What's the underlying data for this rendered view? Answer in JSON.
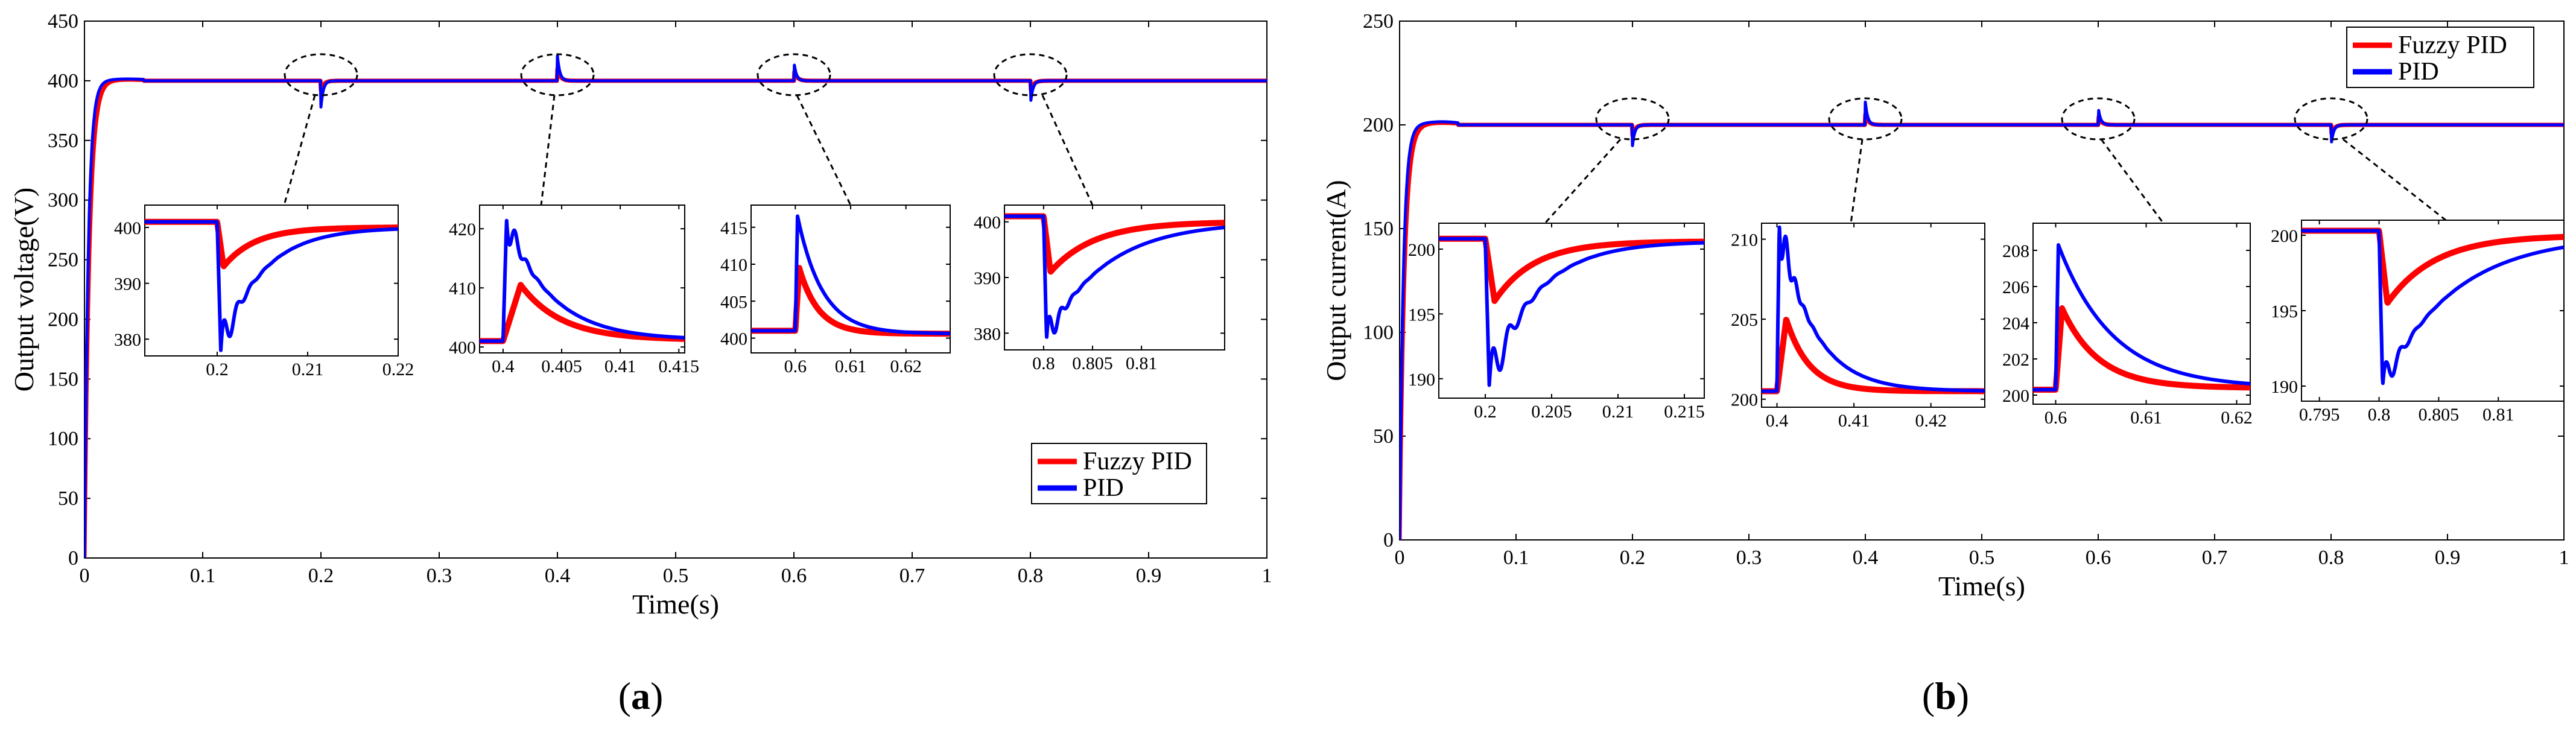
{
  "colors": {
    "fuzzy_pid": "#ff0000",
    "pid": "#0000ff",
    "axis": "#000000"
  },
  "chart_data": [
    {
      "type": "line",
      "panel_label": "a",
      "title": "",
      "xlabel": "Time(s)",
      "ylabel": "Output voltage(V)",
      "xlim": [
        0,
        1
      ],
      "ylim": [
        0,
        450
      ],
      "xticks": [
        0,
        0.1,
        0.2,
        0.3,
        0.4,
        0.5,
        0.6,
        0.7,
        0.8,
        0.9,
        1
      ],
      "xtick_labels": [
        "0",
        "0.1",
        "0.2",
        "0.3",
        "0.4",
        "0.5",
        "0.6",
        "0.7",
        "0.8",
        "0.9",
        "1"
      ],
      "yticks": [
        0,
        50,
        100,
        150,
        200,
        250,
        300,
        350,
        400,
        450
      ],
      "ytick_labels": [
        "0",
        "50",
        "100",
        "150",
        "200",
        "250",
        "300",
        "350",
        "400",
        "450"
      ],
      "legend": [
        "Fuzzy PID",
        "PID"
      ],
      "legend_position": "bottom-right",
      "setpoint": 400,
      "startup_time_constant": 0.004,
      "disturbances": [
        {
          "t": 0.2,
          "fuzzy_peak": 392,
          "pid_peak": 378
        },
        {
          "t": 0.4,
          "fuzzy_peak": 410,
          "pid_peak": 421
        },
        {
          "t": 0.6,
          "fuzzy_peak": 409,
          "pid_peak": 416
        },
        {
          "t": 0.8,
          "fuzzy_peak": 391,
          "pid_peak": 380
        }
      ],
      "series": [
        {
          "name": "Fuzzy PID",
          "color": "#ff0000",
          "points": [
            [
              0,
              0
            ],
            [
              0.005,
              280
            ],
            [
              0.01,
              370
            ],
            [
              0.02,
              398
            ],
            [
              0.03,
              401
            ],
            [
              0.2,
              401
            ],
            [
              0.201,
              393
            ],
            [
              0.21,
              399
            ],
            [
              0.4,
              400
            ],
            [
              0.401,
              410
            ],
            [
              0.41,
              401
            ],
            [
              0.6,
              400
            ],
            [
              0.601,
              409
            ],
            [
              0.61,
              401
            ],
            [
              0.8,
              401
            ],
            [
              0.801,
              391
            ],
            [
              0.81,
              399
            ],
            [
              1,
              400
            ]
          ]
        },
        {
          "name": "PID",
          "color": "#0000ff",
          "points": [
            [
              0,
              0
            ],
            [
              0.005,
              300
            ],
            [
              0.01,
              385
            ],
            [
              0.02,
              400
            ],
            [
              0.03,
              402
            ],
            [
              0.2,
              401
            ],
            [
              0.2005,
              378
            ],
            [
              0.21,
              399
            ],
            [
              0.4,
              400
            ],
            [
              0.4005,
              421
            ],
            [
              0.41,
              402
            ],
            [
              0.6,
              400
            ],
            [
              0.6005,
              416
            ],
            [
              0.61,
              402
            ],
            [
              0.8,
              401
            ],
            [
              0.8005,
              380
            ],
            [
              0.81,
              398
            ],
            [
              1,
              400
            ]
          ]
        }
      ],
      "insets": [
        {
          "xlim": [
            0.192,
            0.22
          ],
          "ylim": [
            377,
            404
          ],
          "xticks": [
            0.2,
            0.21,
            0.22
          ],
          "xtick_labels": [
            "0.2",
            "0.21",
            "0.22"
          ],
          "yticks": [
            380,
            390,
            400
          ],
          "ytick_labels": [
            "380",
            "390",
            "400"
          ],
          "t0": 0.2,
          "pre": 401,
          "final": 400,
          "fuzzy_peak": 393,
          "pid_peak": 378,
          "fuzzy_tau": 0.0035,
          "pid_tau": 0.0045,
          "osc_amp": 5,
          "osc_period": 0.0015,
          "osc_decay": 0.0012,
          "pid_rise": 0.0004
        },
        {
          "xlim": [
            0.398,
            0.4155
          ],
          "ylim": [
            399,
            424
          ],
          "xticks": [
            0.4,
            0.405,
            0.41,
            0.415
          ],
          "xtick_labels": [
            "0.4",
            "0.405",
            "0.41",
            "0.415"
          ],
          "yticks": [
            400,
            410,
            420
          ],
          "ytick_labels": [
            "400",
            "410",
            "420"
          ],
          "t0": 0.4,
          "pre": 401,
          "final": 401.2,
          "fuzzy_peak": 410.5,
          "pid_peak": 421.5,
          "fuzzy_tau": 0.0035,
          "pid_tau": 0.0038,
          "osc_amp": 4,
          "osc_period": 0.001,
          "osc_decay": 0.0008,
          "pid_rise": 0.0003,
          "fuzzy_rise": 0.0015
        },
        {
          "xlim": [
            0.592,
            0.628
          ],
          "ylim": [
            398,
            418
          ],
          "xticks": [
            0.6,
            0.61,
            0.62
          ],
          "xtick_labels": [
            "0.6",
            "0.61",
            "0.62"
          ],
          "yticks": [
            400,
            405,
            410,
            415
          ],
          "ytick_labels": [
            "400",
            "405",
            "410",
            "415"
          ],
          "t0": 0.6,
          "pre": 401,
          "final": 400.6,
          "fuzzy_peak": 409.5,
          "pid_peak": 416.5,
          "fuzzy_tau": 0.0035,
          "pid_tau": 0.0045,
          "osc_amp": 0,
          "osc_period": 0.001,
          "osc_decay": 0.001,
          "pid_rise": 0.0004
        },
        {
          "xlim": [
            0.796,
            0.8185
          ],
          "ylim": [
            377,
            403
          ],
          "xticks": [
            0.8,
            0.805,
            0.81
          ],
          "xtick_labels": [
            "0.8",
            "0.805",
            "0.81"
          ],
          "yticks": [
            380,
            390,
            400
          ],
          "ytick_labels": [
            "380",
            "390",
            "400"
          ],
          "t0": 0.8,
          "pre": 401,
          "final": 400,
          "fuzzy_peak": 391,
          "pid_peak": 379,
          "fuzzy_tau": 0.0045,
          "pid_tau": 0.006,
          "osc_amp": 4,
          "osc_period": 0.0012,
          "osc_decay": 0.001,
          "pid_rise": 0.0003
        }
      ]
    },
    {
      "type": "line",
      "panel_label": "b",
      "title": "",
      "xlabel": "Time(s)",
      "ylabel": "Output current(A)",
      "xlim": [
        0,
        1
      ],
      "ylim": [
        0,
        250
      ],
      "xticks": [
        0,
        0.1,
        0.2,
        0.3,
        0.4,
        0.5,
        0.6,
        0.7,
        0.8,
        0.9,
        1
      ],
      "xtick_labels": [
        "0",
        "0.1",
        "0.2",
        "0.3",
        "0.4",
        "0.5",
        "0.6",
        "0.7",
        "0.8",
        "0.9",
        "1"
      ],
      "yticks": [
        0,
        50,
        100,
        150,
        200,
        250
      ],
      "ytick_labels": [
        "0",
        "50",
        "100",
        "150",
        "200",
        "250"
      ],
      "legend": [
        "Fuzzy PID",
        "PID"
      ],
      "legend_position": "top-right",
      "setpoint": 200,
      "startup_time_constant": 0.004,
      "disturbances": [
        {
          "t": 0.2,
          "fuzzy_peak": 195,
          "pid_peak": 190
        },
        {
          "t": 0.4,
          "fuzzy_peak": 205,
          "pid_peak": 211
        },
        {
          "t": 0.6,
          "fuzzy_peak": 204.5,
          "pid_peak": 208.5
        },
        {
          "t": 0.8,
          "fuzzy_peak": 195,
          "pid_peak": 190
        }
      ],
      "series": [
        {
          "name": "Fuzzy PID",
          "color": "#ff0000",
          "points": [
            [
              0,
              0
            ],
            [
              0.005,
              150
            ],
            [
              0.01,
              190
            ],
            [
              0.02,
              200
            ],
            [
              0.03,
              201
            ],
            [
              0.2,
              201
            ],
            [
              0.201,
              195
            ],
            [
              0.21,
              200
            ],
            [
              0.4,
              200
            ],
            [
              0.401,
              205
            ],
            [
              0.41,
              200.5
            ],
            [
              0.6,
              200
            ],
            [
              0.601,
              204.5
            ],
            [
              0.61,
              200.5
            ],
            [
              0.8,
              200
            ],
            [
              0.801,
              195
            ],
            [
              0.81,
              199
            ],
            [
              1,
              200
            ]
          ]
        },
        {
          "name": "PID",
          "color": "#0000ff",
          "points": [
            [
              0,
              0
            ],
            [
              0.003,
              130
            ],
            [
              0.008,
              190
            ],
            [
              0.02,
              201
            ],
            [
              0.03,
              201
            ],
            [
              0.2,
              201
            ],
            [
              0.2005,
              190
            ],
            [
              0.21,
              200
            ],
            [
              0.4,
              200
            ],
            [
              0.4005,
              211
            ],
            [
              0.41,
              201
            ],
            [
              0.6,
              200
            ],
            [
              0.6005,
              208.5
            ],
            [
              0.61,
              201
            ],
            [
              0.8,
              200
            ],
            [
              0.8005,
              190
            ],
            [
              0.81,
              199
            ],
            [
              1,
              200
            ]
          ]
        }
      ],
      "insets": [
        {
          "xlim": [
            0.1965,
            0.2165
          ],
          "ylim": [
            188.5,
            202
          ],
          "xticks": [
            0.2,
            0.205,
            0.21,
            0.215
          ],
          "xtick_labels": [
            "0.2",
            "0.205",
            "0.21",
            "0.215"
          ],
          "yticks": [
            190,
            195,
            200
          ],
          "ytick_labels": [
            "190",
            "195",
            "200"
          ],
          "t0": 0.2,
          "pre": 200.8,
          "final": 200.6,
          "fuzzy_peak": 196,
          "pid_peak": 189.5,
          "fuzzy_tau": 0.003,
          "pid_tau": 0.0035,
          "osc_amp": 2.5,
          "osc_period": 0.0012,
          "osc_decay": 0.0012,
          "pid_rise": 0.0003
        },
        {
          "xlim": [
            0.398,
            0.427
          ],
          "ylim": [
            199.5,
            211
          ],
          "xticks": [
            0.4,
            0.41,
            0.42
          ],
          "xtick_labels": [
            "0.4",
            "0.41",
            "0.42"
          ],
          "yticks": [
            200,
            205,
            210
          ],
          "ytick_labels": [
            "200",
            "205",
            "210"
          ],
          "t0": 0.4,
          "pre": 200.5,
          "final": 200.5,
          "fuzzy_peak": 205,
          "pid_peak": 211,
          "fuzzy_tau": 0.003,
          "pid_tau": 0.0045,
          "osc_amp": 2,
          "osc_period": 0.0012,
          "osc_decay": 0.0012,
          "pid_rise": 0.0003,
          "fuzzy_rise": 0.0012
        },
        {
          "xlim": [
            0.5975,
            0.6215
          ],
          "ylim": [
            199.5,
            209.5
          ],
          "xticks": [
            0.6,
            0.61,
            0.62
          ],
          "xtick_labels": [
            "0.6",
            "0.61",
            "0.62"
          ],
          "yticks": [
            200,
            202,
            204,
            206,
            208
          ],
          "ytick_labels": [
            "200",
            "202",
            "204",
            "206",
            "208"
          ],
          "t0": 0.6,
          "pre": 200.3,
          "final": 200.4,
          "fuzzy_peak": 204.8,
          "pid_peak": 208.3,
          "fuzzy_tau": 0.004,
          "pid_tau": 0.006,
          "osc_amp": 0,
          "osc_period": 0.001,
          "osc_decay": 0.001,
          "pid_rise": 0.0003
        },
        {
          "xlim": [
            0.7935,
            0.8155
          ],
          "ylim": [
            189,
            201
          ],
          "xticks": [
            0.795,
            0.8,
            0.805,
            0.81
          ],
          "xtick_labels": [
            "0.795",
            "0.8",
            "0.805",
            "0.81"
          ],
          "yticks": [
            190,
            195,
            200
          ],
          "ytick_labels": [
            "190",
            "195",
            "200"
          ],
          "t0": 0.8,
          "pre": 200.3,
          "final": 200,
          "fuzzy_peak": 195.5,
          "pid_peak": 190,
          "fuzzy_tau": 0.004,
          "pid_tau": 0.006,
          "osc_amp": 1.5,
          "osc_period": 0.0012,
          "osc_decay": 0.001,
          "pid_rise": 0.0003
        }
      ]
    }
  ]
}
